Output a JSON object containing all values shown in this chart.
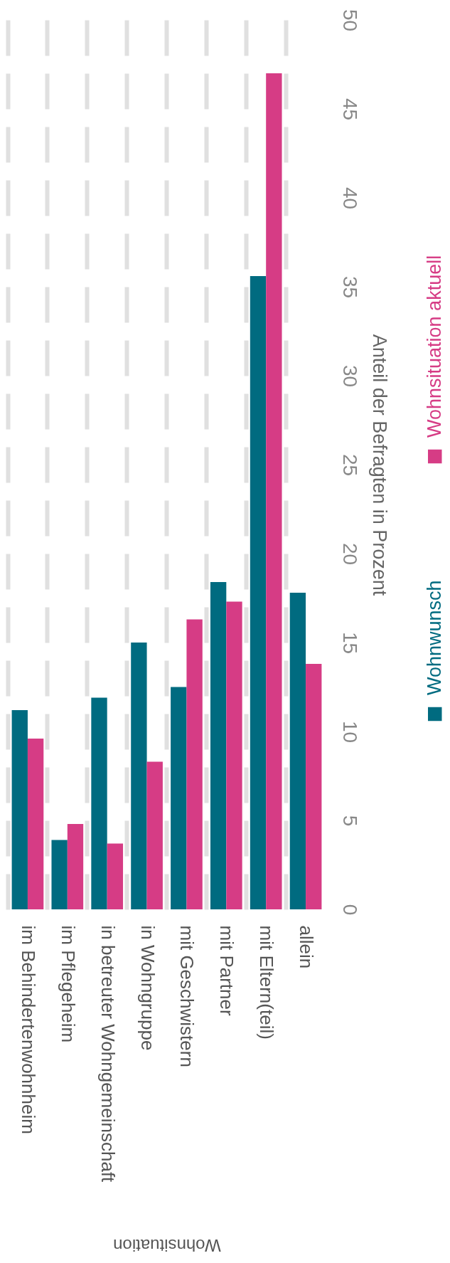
{
  "chart_data": {
    "type": "bar",
    "xlabel": "Wohnsituation",
    "ylabel": "Anteil der Befragten in Prozent",
    "categories": [
      "im Behindertenwohnheim",
      "im Pflegeheim",
      "in betreuter Wohngemeinschaft",
      "in Wohngruppe",
      "mit Geschwistern",
      "mit Partner",
      "mit Eltern(teil)",
      "allein"
    ],
    "series": [
      {
        "name": "Wohnwunsch",
        "color": "#006b80",
        "values": [
          11.2,
          3.9,
          11.9,
          15.0,
          12.5,
          18.4,
          35.6,
          17.8
        ]
      },
      {
        "name": "Wohnsituation aktuell",
        "color": "#d63c85",
        "values": [
          9.6,
          4.8,
          3.7,
          8.3,
          16.3,
          17.3,
          47.0,
          13.8
        ]
      }
    ],
    "ylim": [
      0,
      50
    ],
    "yticks": [
      0,
      5,
      10,
      15,
      20,
      25,
      30,
      35,
      40,
      45,
      50
    ],
    "grid": "x",
    "legend": "right"
  }
}
